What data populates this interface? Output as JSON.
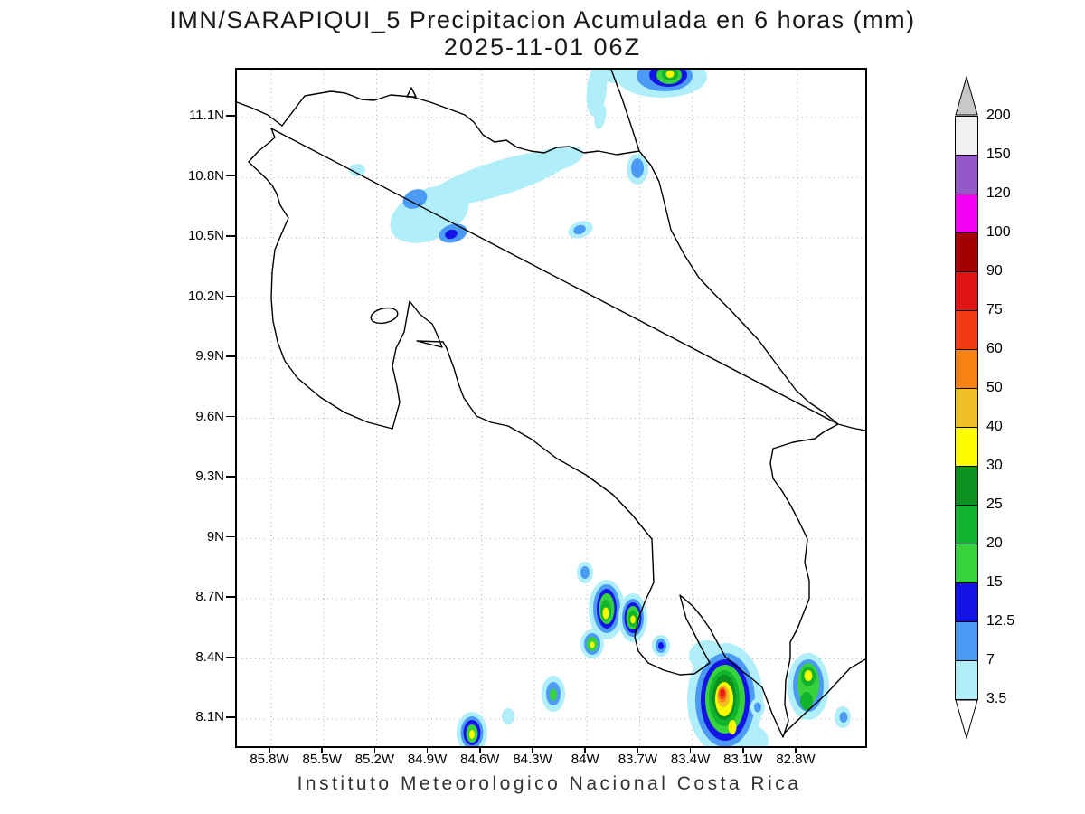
{
  "title": {
    "line1": "IMN/SARAPIQUI_5 Precipitacion Acumulada en 6 horas (mm)",
    "line2": "2025-11-01 06Z"
  },
  "footer": "Instituto Meteorologico Nacional Costa Rica",
  "axes": {
    "y_labels": [
      "11.1N",
      "10.8N",
      "10.5N",
      "10.2N",
      "9.9N",
      "9.6N",
      "9.3N",
      "9N",
      "8.7N",
      "8.4N",
      "8.1N"
    ],
    "x_labels": [
      "85.8W",
      "85.5W",
      "85.2W",
      "84.9W",
      "84.6W",
      "84.3W",
      "84W",
      "83.7W",
      "83.4W",
      "83.1W",
      "82.8W"
    ]
  },
  "colorbar": {
    "labels": [
      "200",
      "150",
      "120",
      "100",
      "90",
      "75",
      "60",
      "50",
      "40",
      "30",
      "25",
      "20",
      "15",
      "12.5",
      "7",
      "3.5"
    ],
    "palette": {
      "0": "#ffffff",
      "3.5": "#b0eefa",
      "7": "#4b9bf5",
      "12.5": "#1414e6",
      "15": "#37d23c",
      "20": "#12b42d",
      "25": "#0a911e",
      "30": "#fafa00",
      "40": "#f0be28",
      "50": "#fa8214",
      "60": "#f03b14",
      "75": "#e11414",
      "90": "#a50000",
      "100": "#f500f5",
      "120": "#9658c8",
      "150": "#f0f0f0",
      "200": "#c8c8c8"
    }
  },
  "chart_data": {
    "type": "filled_contour_map",
    "model": "IMN/SARAPIQUI_5",
    "variable": "Precipitacion Acumulada en 6 horas",
    "units": "mm",
    "valid_time": "2025-11-01 06Z",
    "region": "Costa Rica",
    "lon_ticks": [
      "85.8W",
      "85.5W",
      "85.2W",
      "84.9W",
      "84.6W",
      "84.3W",
      "84W",
      "83.7W",
      "83.4W",
      "83.1W",
      "82.8W"
    ],
    "lat_ticks": [
      "11.1N",
      "10.8N",
      "10.5N",
      "10.2N",
      "9.9N",
      "9.6N",
      "9.3N",
      "9N",
      "8.7N",
      "8.4N",
      "8.1N"
    ],
    "shade_levels_mm": [
      3.5,
      7,
      12.5,
      15,
      20,
      25,
      30,
      40,
      50,
      60,
      75,
      90,
      100,
      120,
      150,
      200
    ],
    "max_shaded_category_mm": "75-90"
  }
}
